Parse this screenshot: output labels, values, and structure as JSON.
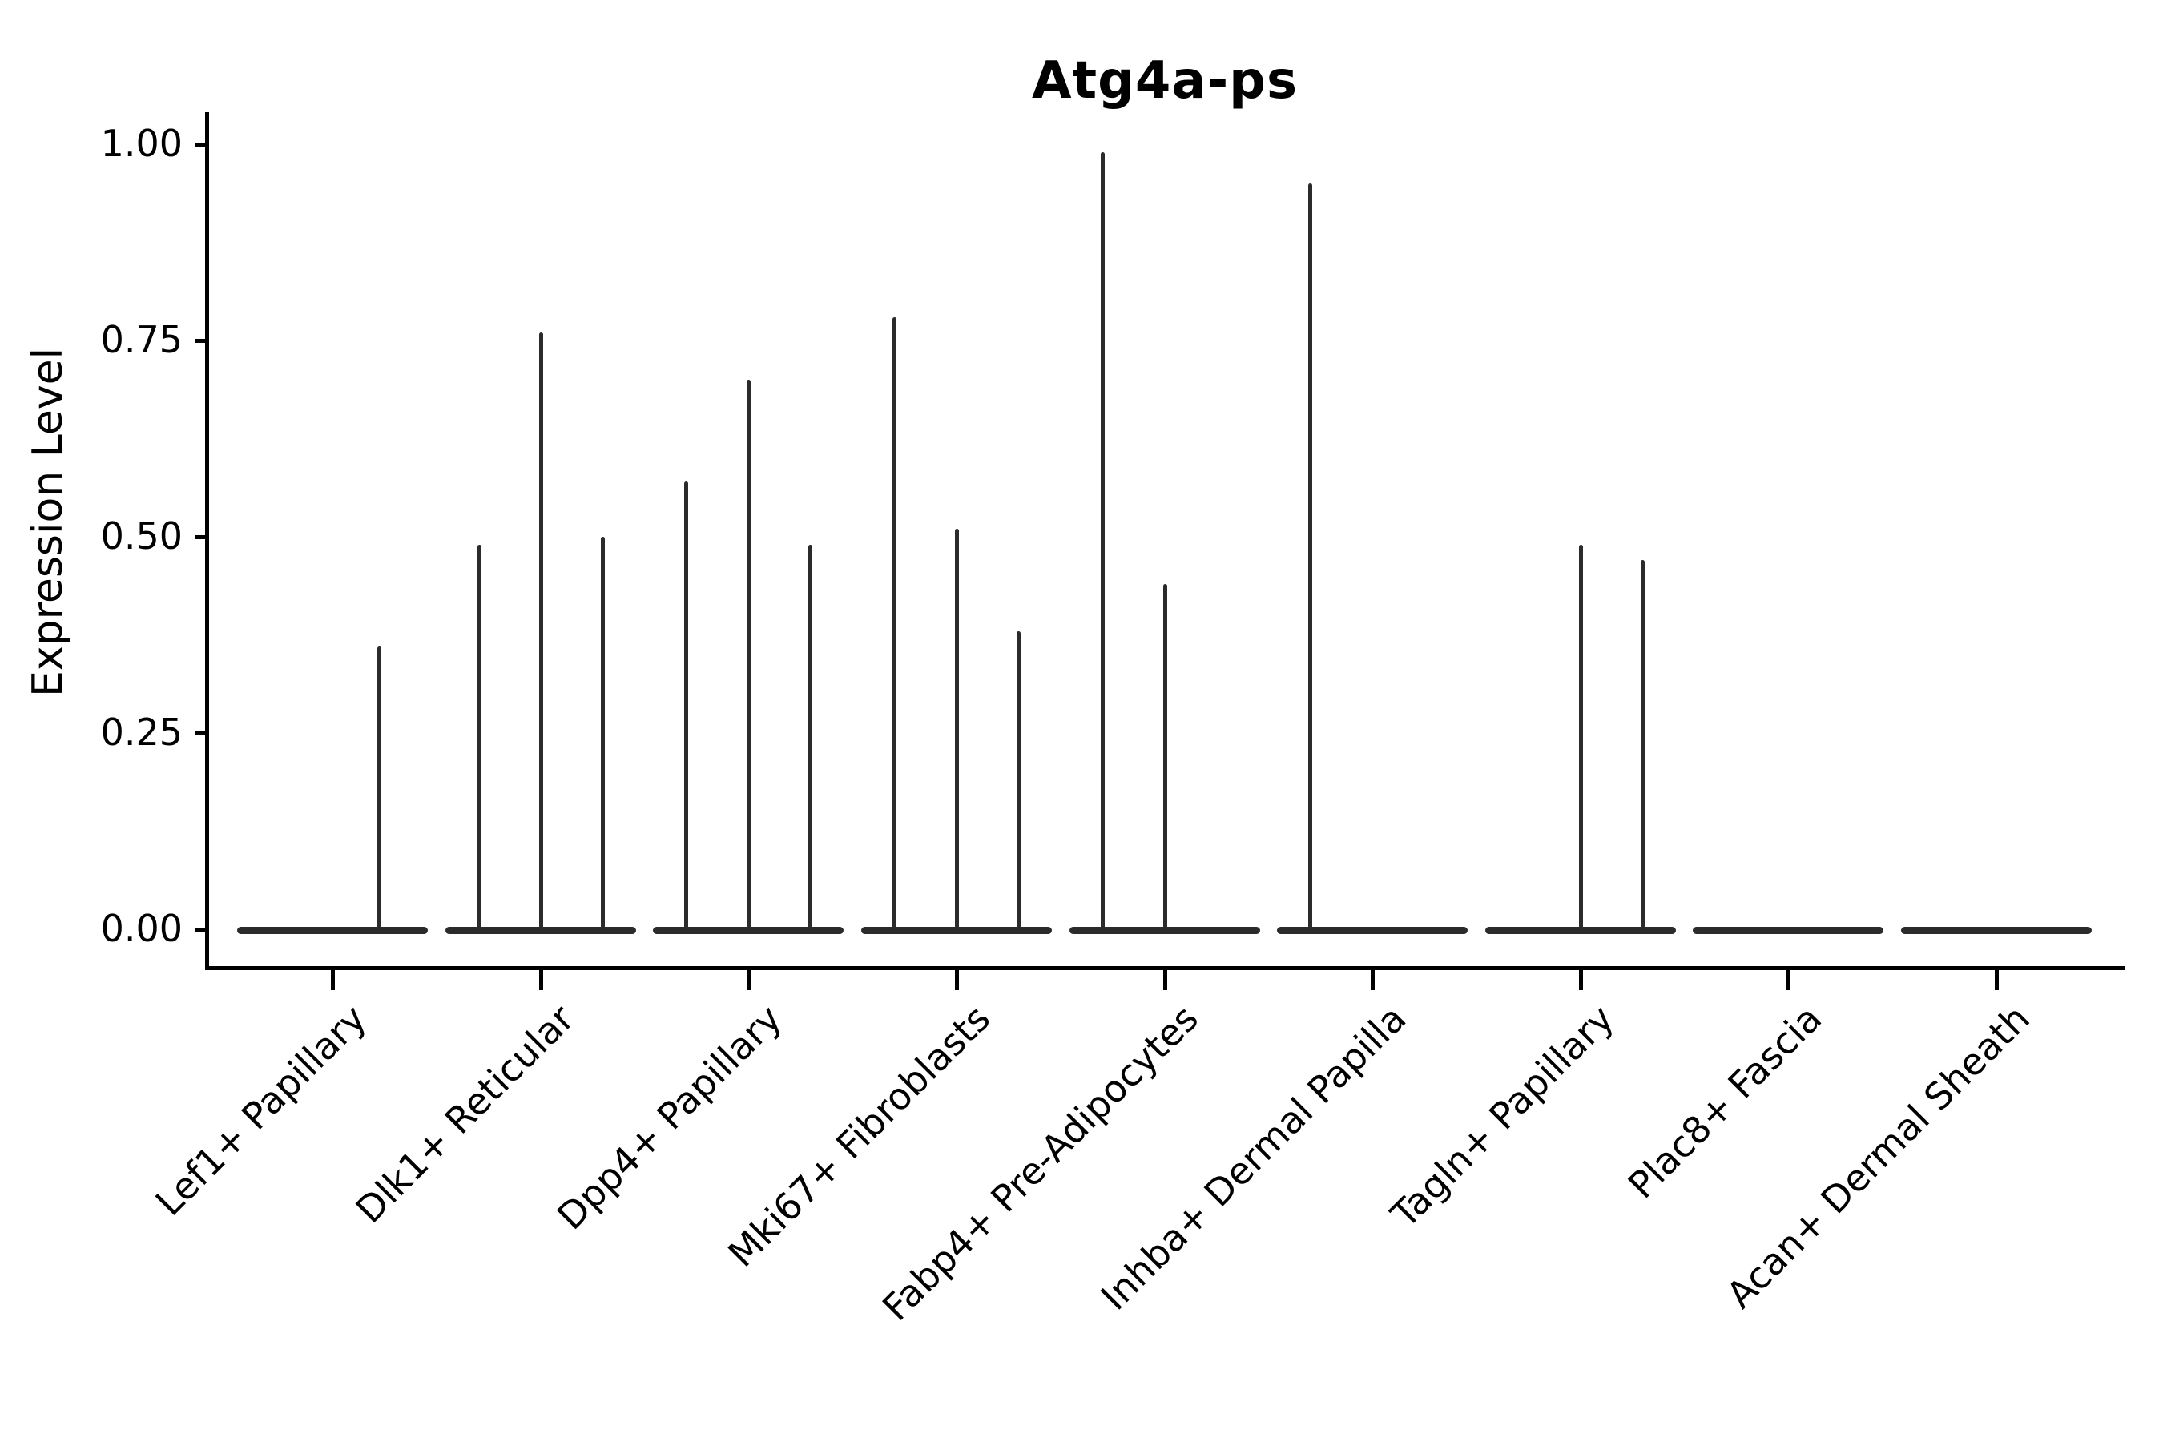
{
  "chart_data": {
    "type": "violin",
    "title": "Atg4a-ps",
    "ylabel": "Expression Level",
    "xlabel": "",
    "ylim": [
      -0.05,
      1.04
    ],
    "ytick_values": [
      0.0,
      0.25,
      0.5,
      0.75,
      1.0
    ],
    "ytick_labels": [
      "0.00",
      "0.25",
      "0.50",
      "0.75",
      "1.00"
    ],
    "xtick_rotation_deg": 45,
    "grid": false,
    "legend": "none",
    "background_color": "#ffffff",
    "violin_color": "#2b2b2b",
    "axis_color": "#000000",
    "categories": [
      "Lef1+ Papillary",
      "Dlk1+ Reticular",
      "Dpp4+ Papillary",
      "Mki67+ Fibroblasts",
      "Fabp4+ Pre-Adipocytes",
      "Inhba+ Dermal Papilla",
      "Tagln+ Papillary",
      "Plac8+ Fascia",
      "Acan+ Dermal Sheath"
    ],
    "violins": [
      {
        "category": "Lef1+ Papillary",
        "baseline": 0.0,
        "spikes": [
          {
            "offset": 58,
            "max": 0.36
          }
        ]
      },
      {
        "category": "Dlk1+ Reticular",
        "baseline": 0.0,
        "spikes": [
          {
            "offset": -77,
            "max": 0.49
          },
          {
            "offset": 0,
            "max": 0.76
          },
          {
            "offset": 77,
            "max": 0.5
          }
        ]
      },
      {
        "category": "Dpp4+ Papillary",
        "baseline": 0.0,
        "spikes": [
          {
            "offset": -78,
            "max": 0.57
          },
          {
            "offset": 0,
            "max": 0.7
          },
          {
            "offset": 77,
            "max": 0.49
          }
        ]
      },
      {
        "category": "Mki67+ Fibroblasts",
        "baseline": 0.0,
        "spikes": [
          {
            "offset": -78,
            "max": 0.78
          },
          {
            "offset": 0,
            "max": 0.51
          },
          {
            "offset": 77,
            "max": 0.38
          }
        ]
      },
      {
        "category": "Fabp4+ Pre-Adipocytes",
        "baseline": 0.0,
        "spikes": [
          {
            "offset": -78,
            "max": 0.99
          },
          {
            "offset": 0,
            "max": 0.44
          }
        ]
      },
      {
        "category": "Inhba+ Dermal Papilla",
        "baseline": 0.0,
        "spikes": [
          {
            "offset": -78,
            "max": 0.95
          }
        ]
      },
      {
        "category": "Tagln+ Papillary",
        "baseline": 0.0,
        "spikes": [
          {
            "offset": 0,
            "max": 0.49
          },
          {
            "offset": 77,
            "max": 0.47
          }
        ]
      },
      {
        "category": "Plac8+ Fascia",
        "baseline": 0.0,
        "spikes": []
      },
      {
        "category": "Acan+ Dermal Sheath",
        "baseline": 0.0,
        "spikes": []
      }
    ]
  }
}
